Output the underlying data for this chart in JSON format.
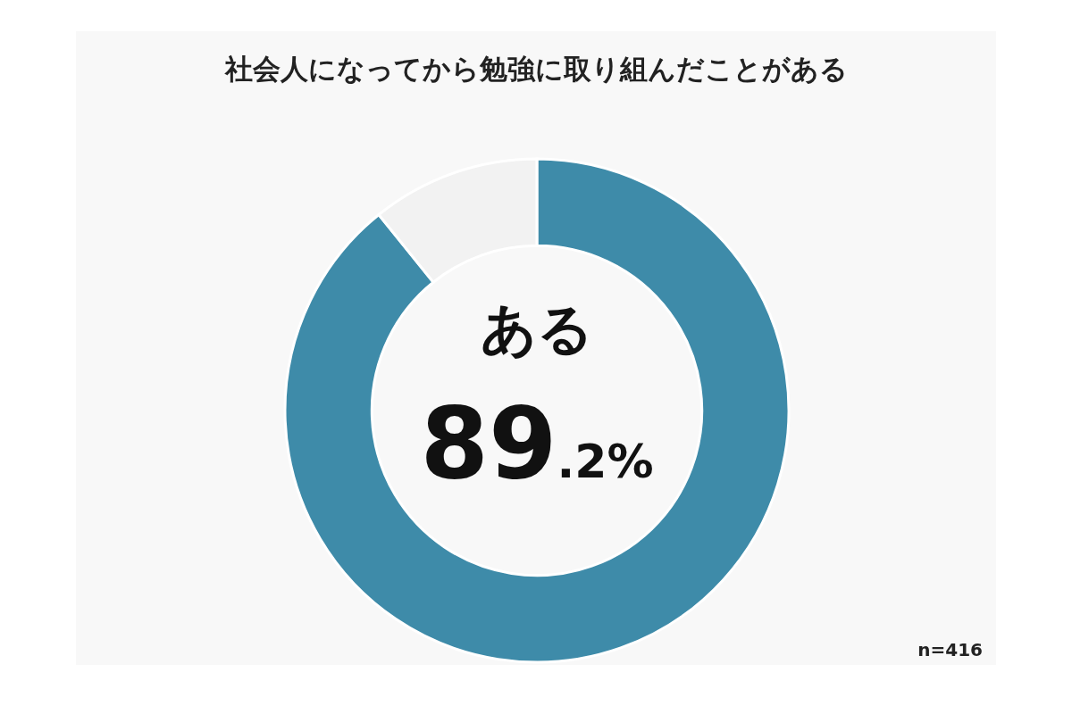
{
  "chart_data": {
    "type": "donut",
    "title": "社会人になってから勉強に取り組んだことがある",
    "categories": [
      "ある",
      null
    ],
    "values": [
      89.2,
      10.8
    ],
    "colors": [
      "#3e8ba9",
      "#f2f2f2"
    ],
    "value_labels": [
      "89.2%",
      null
    ],
    "annotations": [
      "n=416"
    ]
  }
}
